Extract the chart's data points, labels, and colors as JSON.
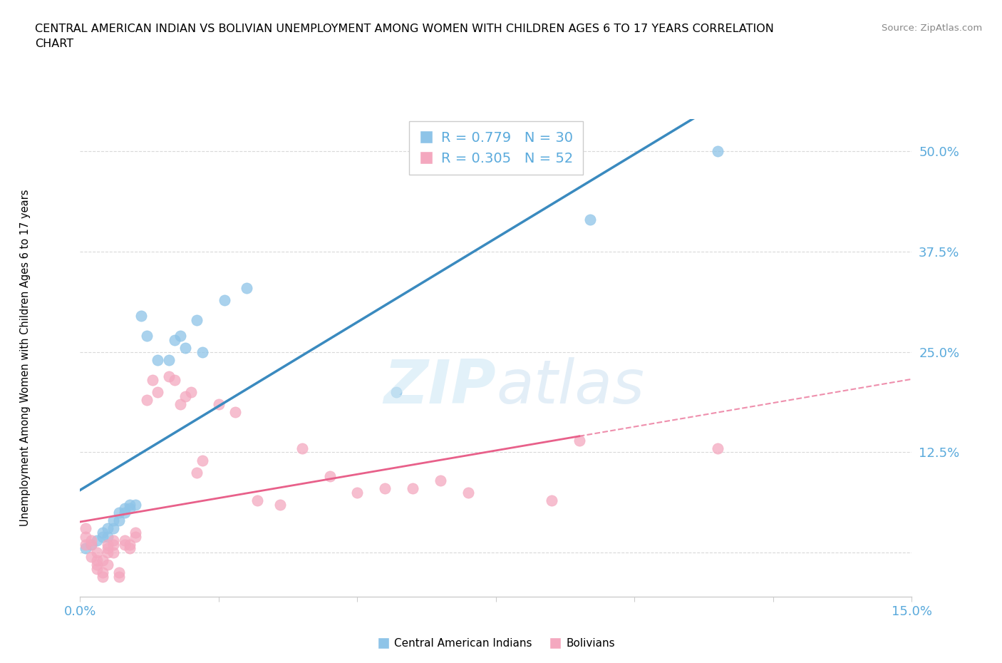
{
  "title_line1": "CENTRAL AMERICAN INDIAN VS BOLIVIAN UNEMPLOYMENT AMONG WOMEN WITH CHILDREN AGES 6 TO 17 YEARS CORRELATION",
  "title_line2": "CHART",
  "source": "Source: ZipAtlas.com",
  "ylabel": "Unemployment Among Women with Children Ages 6 to 17 years",
  "xlim": [
    0.0,
    0.15
  ],
  "ylim": [
    -0.055,
    0.54
  ],
  "yticks": [
    0.0,
    0.125,
    0.25,
    0.375,
    0.5
  ],
  "ytick_labels": [
    "",
    "12.5%",
    "25.0%",
    "37.5%",
    "50.0%"
  ],
  "xticks": [
    0.0,
    0.025,
    0.05,
    0.075,
    0.1,
    0.125,
    0.15
  ],
  "xtick_labels": [
    "0.0%",
    "",
    "",
    "",
    "",
    "",
    "15.0%"
  ],
  "blue_color": "#8ec4e8",
  "pink_color": "#f4a8bf",
  "trend_blue": "#3a8abf",
  "trend_pink": "#e8608a",
  "axis_color": "#5aaadc",
  "legend_blue_R": "R = 0.779",
  "legend_blue_N": "N = 30",
  "legend_pink_R": "R = 0.305",
  "legend_pink_N": "N = 52",
  "blue_x": [
    0.001,
    0.002,
    0.003,
    0.004,
    0.004,
    0.005,
    0.005,
    0.006,
    0.006,
    0.007,
    0.007,
    0.008,
    0.008,
    0.009,
    0.009,
    0.01,
    0.011,
    0.012,
    0.014,
    0.016,
    0.017,
    0.018,
    0.019,
    0.021,
    0.022,
    0.026,
    0.03,
    0.057,
    0.092,
    0.115
  ],
  "blue_y": [
    0.005,
    0.01,
    0.015,
    0.02,
    0.025,
    0.02,
    0.03,
    0.03,
    0.04,
    0.04,
    0.05,
    0.05,
    0.055,
    0.055,
    0.06,
    0.06,
    0.295,
    0.27,
    0.24,
    0.24,
    0.265,
    0.27,
    0.255,
    0.29,
    0.25,
    0.315,
    0.33,
    0.2,
    0.415,
    0.5
  ],
  "pink_x": [
    0.001,
    0.001,
    0.001,
    0.002,
    0.002,
    0.002,
    0.003,
    0.003,
    0.003,
    0.003,
    0.004,
    0.004,
    0.004,
    0.005,
    0.005,
    0.005,
    0.005,
    0.006,
    0.006,
    0.006,
    0.007,
    0.007,
    0.008,
    0.008,
    0.009,
    0.009,
    0.01,
    0.01,
    0.012,
    0.013,
    0.014,
    0.016,
    0.017,
    0.018,
    0.019,
    0.02,
    0.021,
    0.022,
    0.025,
    0.028,
    0.032,
    0.036,
    0.04,
    0.045,
    0.05,
    0.055,
    0.06,
    0.065,
    0.07,
    0.085,
    0.09,
    0.115
  ],
  "pink_y": [
    0.01,
    0.02,
    0.03,
    -0.005,
    0.01,
    0.015,
    -0.015,
    -0.02,
    -0.01,
    0.0,
    -0.025,
    -0.03,
    -0.01,
    -0.015,
    0.0,
    0.005,
    0.01,
    0.0,
    0.01,
    0.015,
    -0.025,
    -0.03,
    0.01,
    0.015,
    0.005,
    0.01,
    0.02,
    0.025,
    0.19,
    0.215,
    0.2,
    0.22,
    0.215,
    0.185,
    0.195,
    0.2,
    0.1,
    0.115,
    0.185,
    0.175,
    0.065,
    0.06,
    0.13,
    0.095,
    0.075,
    0.08,
    0.08,
    0.09,
    0.075,
    0.065,
    0.14,
    0.13
  ]
}
